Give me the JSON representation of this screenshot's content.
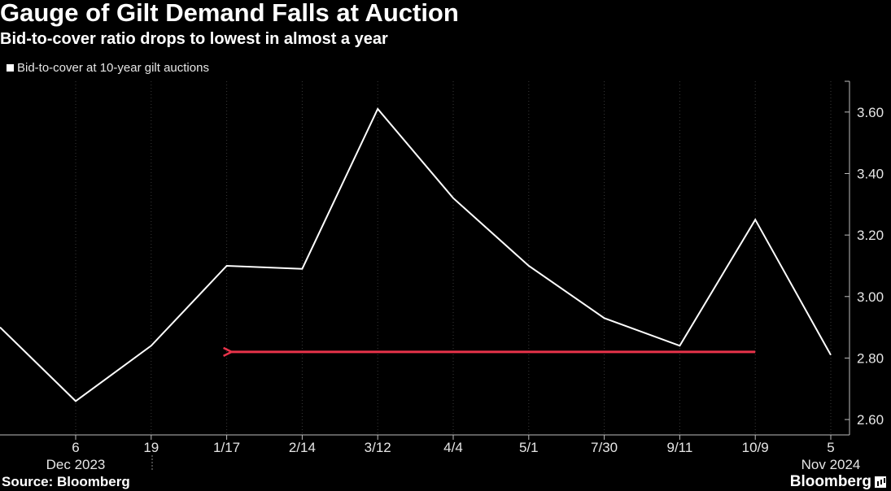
{
  "chart_data": {
    "type": "line",
    "title": "Gauge of Gilt Demand Falls at Auction",
    "subtitle": "Bid-to-cover ratio drops to lowest in almost a year",
    "x_tick_labels": [
      "6",
      "19",
      "1/17",
      "2/14",
      "3/12",
      "4/4",
      "5/1",
      "7/30",
      "9/11",
      "10/9",
      "5"
    ],
    "x_secondary_labels": [
      {
        "text": "Dec 2023",
        "tick_index": 0
      },
      {
        "text": "Nov 2024",
        "tick_index": 10
      }
    ],
    "series": [
      {
        "name": "Bid-to-cover at 10-year gilt auctions",
        "color": "#ffffff",
        "values": [
          2.9,
          2.66,
          2.84,
          3.1,
          3.09,
          3.61,
          3.32,
          3.1,
          2.93,
          2.84,
          3.25,
          2.81
        ]
      }
    ],
    "x_positions": [
      -1,
      0,
      1,
      2,
      3,
      4,
      5,
      6,
      7,
      8,
      9,
      10
    ],
    "y_ticks": [
      2.6,
      2.8,
      3.0,
      3.2,
      3.4,
      3.6
    ],
    "y_tick_labels": [
      "2.60",
      "2.80",
      "3.00",
      "3.20",
      "3.40",
      "3.60"
    ],
    "ylim": [
      2.55,
      3.7
    ],
    "y_axis_position": "right",
    "grid": "vertical-dotted",
    "legend_position": "top-left",
    "annotations": [
      {
        "type": "arrow",
        "color": "#e8334a",
        "y": 2.82,
        "from_tick_index": 9,
        "to_tick_index": 2
      }
    ]
  },
  "legend": {
    "label": "Bid-to-cover at 10-year gilt auctions"
  },
  "footer": {
    "source": "Source: Bloomberg",
    "brand": "Bloomberg"
  },
  "icons": {
    "brand": "bloomberg-terminal-icon"
  }
}
